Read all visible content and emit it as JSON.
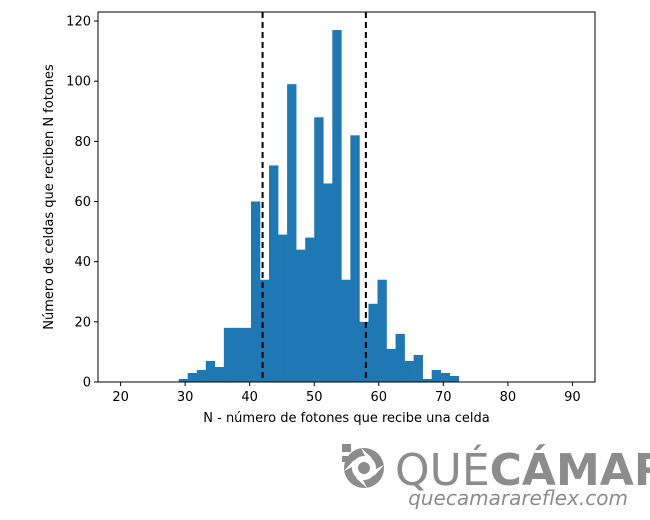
{
  "chart_data": {
    "type": "bar",
    "title": "",
    "xlabel": "N - número de fotones que recibe una celda",
    "ylabel": "Número de celdas que reciben N fotones",
    "xlim": [
      16.5,
      93.5
    ],
    "ylim": [
      0,
      123
    ],
    "xticks": [
      20,
      30,
      40,
      50,
      60,
      70,
      80,
      90
    ],
    "yticks": [
      0,
      20,
      40,
      60,
      80,
      100,
      120
    ],
    "bin_width": 1.4,
    "bins": [
      {
        "x0": 29.0,
        "value": 1
      },
      {
        "x0": 30.4,
        "value": 3
      },
      {
        "x0": 31.8,
        "value": 4
      },
      {
        "x0": 33.2,
        "value": 7
      },
      {
        "x0": 34.6,
        "value": 5
      },
      {
        "x0": 36.0,
        "value": 18
      },
      {
        "x0": 37.4,
        "value": 18
      },
      {
        "x0": 38.8,
        "value": 18
      },
      {
        "x0": 40.2,
        "value": 60
      },
      {
        "x0": 41.6,
        "value": 34
      },
      {
        "x0": 43.0,
        "value": 72
      },
      {
        "x0": 44.4,
        "value": 49
      },
      {
        "x0": 45.8,
        "value": 99
      },
      {
        "x0": 47.2,
        "value": 44
      },
      {
        "x0": 48.6,
        "value": 48
      },
      {
        "x0": 50.0,
        "value": 88
      },
      {
        "x0": 51.4,
        "value": 66
      },
      {
        "x0": 52.8,
        "value": 117
      },
      {
        "x0": 54.2,
        "value": 34
      },
      {
        "x0": 55.6,
        "value": 82
      },
      {
        "x0": 57.0,
        "value": 20
      },
      {
        "x0": 58.4,
        "value": 26
      },
      {
        "x0": 59.8,
        "value": 34
      },
      {
        "x0": 61.2,
        "value": 11
      },
      {
        "x0": 62.6,
        "value": 16
      },
      {
        "x0": 64.0,
        "value": 7
      },
      {
        "x0": 65.4,
        "value": 9
      },
      {
        "x0": 66.8,
        "value": 1
      },
      {
        "x0": 68.2,
        "value": 4
      },
      {
        "x0": 69.6,
        "value": 3
      },
      {
        "x0": 71.0,
        "value": 2
      }
    ],
    "vlines": [
      42,
      58
    ],
    "bar_color": "#1f77b4",
    "vline_color": "#000000",
    "grid": false
  },
  "watermark": {
    "brand_light": "QUÉ",
    "brand_bold": "CÁMARA",
    "url": "quecamarareflex.com",
    "color": "#8c8c8c",
    "logo_icon": "aperture-icon"
  }
}
